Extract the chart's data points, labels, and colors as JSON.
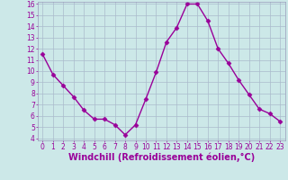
{
  "x": [
    0,
    1,
    2,
    3,
    4,
    5,
    6,
    7,
    8,
    9,
    10,
    11,
    12,
    13,
    14,
    15,
    16,
    17,
    18,
    19,
    20,
    21,
    22,
    23
  ],
  "y": [
    11.5,
    9.7,
    8.7,
    7.7,
    6.5,
    5.7,
    5.7,
    5.2,
    4.3,
    5.2,
    7.5,
    9.9,
    12.6,
    13.9,
    16.0,
    16.0,
    14.5,
    12.0,
    10.7,
    9.2,
    7.9,
    6.6,
    6.2,
    5.5
  ],
  "line_color": "#990099",
  "marker": "D",
  "markersize": 2.5,
  "linewidth": 1.0,
  "bg_color": "#cce8e8",
  "grid_color": "#aabbcc",
  "xlabel": "Windchill (Refroidissement éolien,°C)",
  "xlabel_fontsize": 7,
  "ylim": [
    4,
    16
  ],
  "xlim": [
    -0.5,
    23.5
  ],
  "yticks": [
    4,
    5,
    6,
    7,
    8,
    9,
    10,
    11,
    12,
    13,
    14,
    15,
    16
  ],
  "xticks": [
    0,
    1,
    2,
    3,
    4,
    5,
    6,
    7,
    8,
    9,
    10,
    11,
    12,
    13,
    14,
    15,
    16,
    17,
    18,
    19,
    20,
    21,
    22,
    23
  ],
  "tick_fontsize": 5.5,
  "tick_color": "#990099",
  "spine_color": "#9999bb"
}
